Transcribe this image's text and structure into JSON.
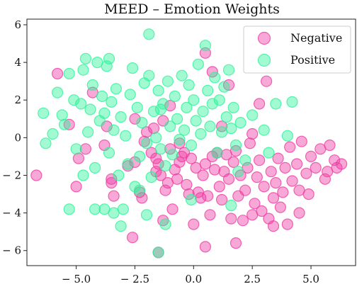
{
  "chart_data": {
    "type": "scatter",
    "title": "MEED – Emotion Weights",
    "xlabel": "",
    "ylabel": "",
    "xlim": [
      -7.1,
      6.9
    ],
    "ylim": [
      -6.8,
      6.3
    ],
    "xticks": [
      -5.0,
      -2.5,
      0.0,
      2.5,
      5.0
    ],
    "xtick_labels": [
      "− 5.0",
      "− 2.5",
      "0.0",
      "2.5",
      "5.0"
    ],
    "yticks": [
      6,
      4,
      2,
      0,
      -2,
      -4,
      -6
    ],
    "ytick_labels": [
      "6",
      "4",
      "2",
      "0",
      "− 2",
      "− 4",
      "− 6"
    ],
    "grid": false,
    "legend": "top-right",
    "series": [
      {
        "name": "Negative",
        "color": "#ef3fa3",
        "marker": "circle",
        "points": [
          [
            -6.7,
            -2.0
          ],
          [
            -5.8,
            3.4
          ],
          [
            -5.3,
            0.7
          ],
          [
            -5.0,
            -2.6
          ],
          [
            -4.6,
            -0.6
          ],
          [
            -4.3,
            2.4
          ],
          [
            -3.8,
            -0.4
          ],
          [
            -3.5,
            -2.4
          ],
          [
            -3.5,
            -2.2
          ],
          [
            -2.8,
            -1.5
          ],
          [
            -2.5,
            -1.3
          ],
          [
            -2.3,
            -2.9
          ],
          [
            -2.2,
            -3.2
          ],
          [
            -2.1,
            -0.2
          ],
          [
            -2.0,
            0.3
          ],
          [
            -1.8,
            -0.8
          ],
          [
            -1.7,
            0.5
          ],
          [
            -1.6,
            -1.8
          ],
          [
            -1.6,
            -1.1
          ],
          [
            -1.5,
            -1.4
          ],
          [
            -1.4,
            -2.0
          ],
          [
            -1.3,
            0.9
          ],
          [
            -1.2,
            -2.8
          ],
          [
            -1.1,
            -2.4
          ],
          [
            -1.0,
            -0.6
          ],
          [
            -0.9,
            -3.8
          ],
          [
            -0.8,
            -1.7
          ],
          [
            -0.7,
            -2.2
          ],
          [
            -0.6,
            -1.3
          ],
          [
            -0.5,
            -1.0
          ],
          [
            -0.4,
            -0.8
          ],
          [
            -0.3,
            -2.5
          ],
          [
            -0.2,
            -3.0
          ],
          [
            -0.1,
            -1.1
          ],
          [
            0.0,
            -4.6
          ],
          [
            0.1,
            -1.6
          ],
          [
            0.2,
            -2.9
          ],
          [
            0.3,
            -3.2
          ],
          [
            0.4,
            -2.0
          ],
          [
            0.5,
            -1.4
          ],
          [
            0.6,
            -3.1
          ],
          [
            0.7,
            -4.1
          ],
          [
            0.8,
            -1.0
          ],
          [
            0.9,
            -1.7
          ],
          [
            1.0,
            -0.8
          ],
          [
            1.1,
            -2.6
          ],
          [
            1.2,
            -3.3
          ],
          [
            1.3,
            -1.8
          ],
          [
            1.4,
            -0.9
          ],
          [
            1.5,
            -2.2
          ],
          [
            1.6,
            -4.3
          ],
          [
            1.7,
            -1.3
          ],
          [
            1.8,
            -0.7
          ],
          [
            1.9,
            -3.1
          ],
          [
            2.0,
            -2.0
          ],
          [
            2.1,
            -4.4
          ],
          [
            2.2,
            -2.8
          ],
          [
            2.3,
            -1.6
          ],
          [
            2.4,
            -0.3
          ],
          [
            2.5,
            -4.1
          ],
          [
            2.6,
            -3.5
          ],
          [
            2.7,
            -2.1
          ],
          [
            2.8,
            -1.2
          ],
          [
            2.9,
            -3.9
          ],
          [
            3.0,
            -2.6
          ],
          [
            3.2,
            -4.3
          ],
          [
            3.3,
            -1.8
          ],
          [
            3.4,
            -3.2
          ],
          [
            3.5,
            -2.4
          ],
          [
            3.6,
            -1.1
          ],
          [
            3.7,
            -3.7
          ],
          [
            3.8,
            -2.9
          ],
          [
            3.9,
            -1.6
          ],
          [
            4.0,
            -4.6
          ],
          [
            4.1,
            -0.5
          ],
          [
            4.2,
            -2.3
          ],
          [
            4.4,
            -1.4
          ],
          [
            4.5,
            -2.8
          ],
          [
            4.6,
            -0.2
          ],
          [
            4.8,
            -1.9
          ],
          [
            4.9,
            -3.0
          ],
          [
            5.0,
            -1.0
          ],
          [
            5.2,
            -1.6
          ],
          [
            5.4,
            -0.6
          ],
          [
            5.6,
            -2.2
          ],
          [
            5.7,
            -1.8
          ],
          [
            5.8,
            -0.4
          ],
          [
            6.0,
            -1.2
          ],
          [
            6.1,
            -1.6
          ],
          [
            6.3,
            -1.4
          ],
          [
            4.5,
            -4.0
          ],
          [
            3.4,
            -4.7
          ],
          [
            2.8,
            1.8
          ],
          [
            1.8,
            -5.6
          ],
          [
            0.5,
            -5.8
          ],
          [
            -1.5,
            -6.1
          ],
          [
            -2.6,
            -5.3
          ],
          [
            -1.3,
            -4.4
          ],
          [
            0.5,
            4.5
          ],
          [
            0.8,
            3.5
          ],
          [
            -2.5,
            1.0
          ],
          [
            -3.7,
            0.6
          ],
          [
            -4.9,
            -1.1
          ],
          [
            -3.4,
            -3.1
          ],
          [
            -1.0,
            1.7
          ],
          [
            1.5,
            2.8
          ],
          [
            3.1,
            3.0
          ],
          [
            2.5,
            0.2
          ],
          [
            -0.6,
            -0.3
          ],
          [
            1.2,
            0.6
          ]
        ]
      },
      {
        "name": "Positive",
        "color": "#2ff39a",
        "marker": "circle",
        "points": [
          [
            -6.3,
            -0.3
          ],
          [
            -6.0,
            0.2
          ],
          [
            -5.8,
            2.4
          ],
          [
            -5.6,
            1.2
          ],
          [
            -5.5,
            0.7
          ],
          [
            -5.3,
            3.4
          ],
          [
            -5.1,
            2.0
          ],
          [
            -5.0,
            -0.6
          ],
          [
            -4.8,
            1.8
          ],
          [
            -4.7,
            3.6
          ],
          [
            -4.6,
            4.2
          ],
          [
            -4.5,
            0.3
          ],
          [
            -4.4,
            1.5
          ],
          [
            -4.3,
            2.8
          ],
          [
            -4.2,
            -1.6
          ],
          [
            -4.1,
            4.0
          ],
          [
            -4.0,
            0.9
          ],
          [
            -3.9,
            2.2
          ],
          [
            -3.8,
            1.3
          ],
          [
            -3.7,
            3.8
          ],
          [
            -3.6,
            -0.8
          ],
          [
            -3.5,
            1.9
          ],
          [
            -3.4,
            0.4
          ],
          [
            -3.3,
            2.6
          ],
          [
            -3.2,
            -2.0
          ],
          [
            -3.1,
            1.1
          ],
          [
            -3.0,
            -3.8
          ],
          [
            -2.9,
            0.1
          ],
          [
            -2.8,
            -1.4
          ],
          [
            -2.7,
            2.3
          ],
          [
            -2.6,
            3.7
          ],
          [
            -2.5,
            -2.6
          ],
          [
            -2.4,
            1.6
          ],
          [
            -2.3,
            -1.0
          ],
          [
            -2.2,
            0.8
          ],
          [
            -2.1,
            2.9
          ],
          [
            -2.0,
            -0.3
          ],
          [
            -1.9,
            3.3
          ],
          [
            -1.8,
            -2.1
          ],
          [
            -1.7,
            1.4
          ],
          [
            -1.6,
            0.0
          ],
          [
            -1.5,
            2.5
          ],
          [
            -1.4,
            -0.6
          ],
          [
            -1.3,
            1.8
          ],
          [
            -1.2,
            -1.5
          ],
          [
            -1.1,
            3.0
          ],
          [
            -1.0,
            0.6
          ],
          [
            -0.9,
            -0.9
          ],
          [
            -0.8,
            2.2
          ],
          [
            -0.7,
            1.0
          ],
          [
            -0.6,
            -0.1
          ],
          [
            -0.5,
            3.3
          ],
          [
            -0.4,
            0.4
          ],
          [
            -0.3,
            1.6
          ],
          [
            -0.2,
            2.8
          ],
          [
            -0.1,
            -0.4
          ],
          [
            0.0,
            2.0
          ],
          [
            0.1,
            0.9
          ],
          [
            0.2,
            3.9
          ],
          [
            0.3,
            0.2
          ],
          [
            0.4,
            1.4
          ],
          [
            0.5,
            4.9
          ],
          [
            0.6,
            2.5
          ],
          [
            0.7,
            0.6
          ],
          [
            0.8,
            1.8
          ],
          [
            0.9,
            3.2
          ],
          [
            1.0,
            -0.8
          ],
          [
            1.1,
            2.0
          ],
          [
            1.2,
            0.3
          ],
          [
            1.3,
            2.7
          ],
          [
            1.4,
            1.1
          ],
          [
            1.5,
            3.6
          ],
          [
            1.6,
            0.5
          ],
          [
            1.7,
            1.6
          ],
          [
            1.8,
            -0.4
          ],
          [
            1.9,
            -1.8
          ],
          [
            2.0,
            0.8
          ],
          [
            2.2,
            -1.2
          ],
          [
            2.5,
            1.2
          ],
          [
            3.0,
            0.4
          ],
          [
            3.2,
            -0.8
          ],
          [
            3.5,
            1.8
          ],
          [
            4.0,
            0.1
          ],
          [
            4.2,
            1.9
          ],
          [
            -1.9,
            5.5
          ],
          [
            -3.6,
            4.2
          ],
          [
            -4.2,
            -3.8
          ],
          [
            -3.8,
            -3.8
          ],
          [
            -3.4,
            -4.0
          ],
          [
            -3.1,
            -4.7
          ],
          [
            -1.2,
            -4.6
          ],
          [
            -1.5,
            -6.1
          ],
          [
            -2.0,
            -4.1
          ],
          [
            -5.3,
            -3.8
          ],
          [
            -6.4,
            1.3
          ],
          [
            -4.7,
            -2.0
          ],
          [
            -2.3,
            -2.8
          ],
          [
            -1.4,
            1.5
          ],
          [
            -0.1,
            -3.3
          ],
          [
            1.6,
            -3.6
          ]
        ]
      }
    ]
  }
}
